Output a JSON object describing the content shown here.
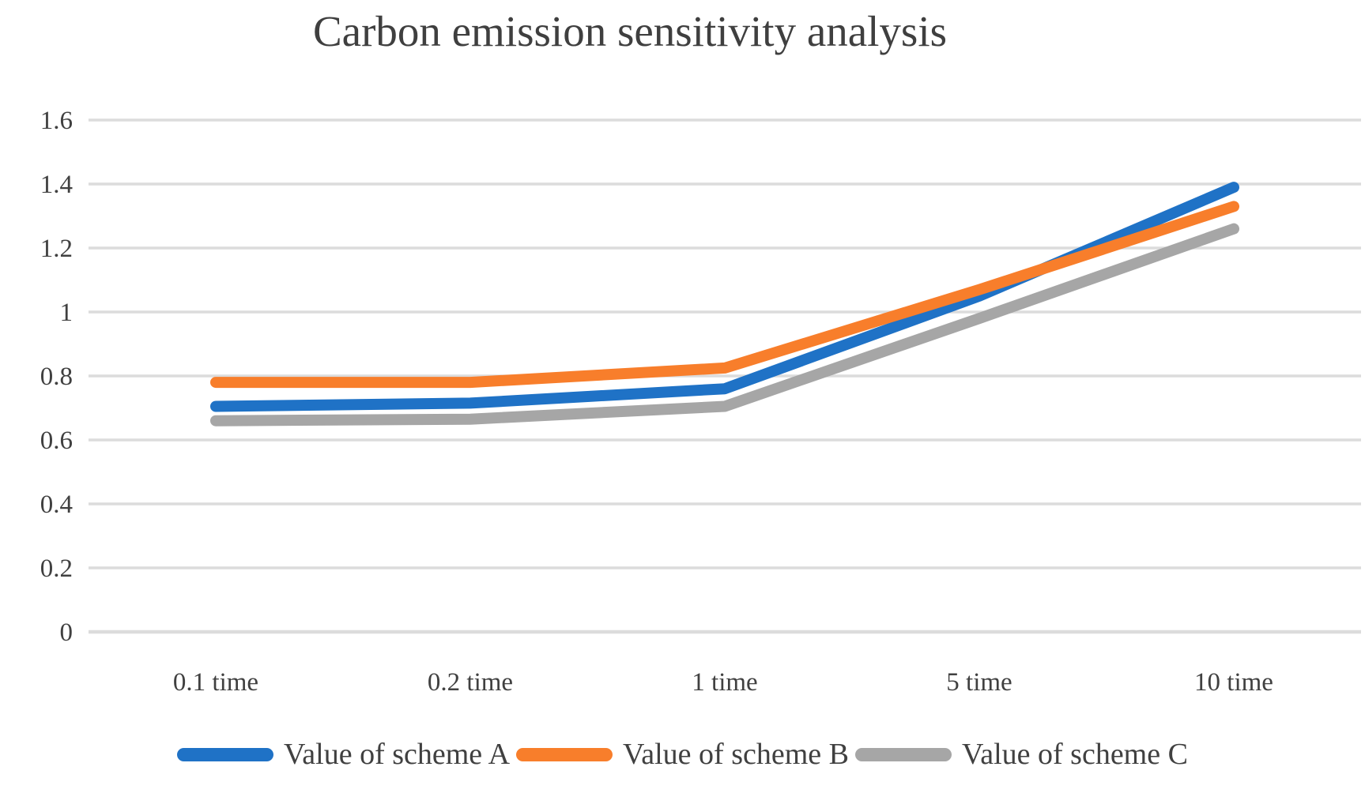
{
  "title": "Carbon emission sensitivity analysis",
  "chart_data": {
    "type": "line",
    "title": "Carbon emission sensitivity analysis",
    "categories": [
      "0.1 time",
      "0.2 time",
      "1 time",
      "5 time",
      "10 time"
    ],
    "series": [
      {
        "name": "Value of scheme A",
        "color": "#1F72C6",
        "values": [
          0.705,
          0.715,
          0.76,
          1.05,
          1.39
        ]
      },
      {
        "name": "Value of scheme B",
        "color": "#F87E2B",
        "values": [
          0.78,
          0.78,
          0.825,
          1.07,
          1.33
        ]
      },
      {
        "name": "Value of scheme C",
        "color": "#A6A6A6",
        "values": [
          0.66,
          0.665,
          0.705,
          0.98,
          1.26
        ]
      }
    ],
    "xlabel": "",
    "ylabel": "",
    "ylim": [
      0,
      1.6
    ],
    "ytick_step": 0.2,
    "ytick_labels": [
      "0",
      "0.2",
      "0.4",
      "0.6",
      "0.8",
      "1",
      "1.2",
      "1.4",
      "1.6"
    ],
    "grid": "horizontal",
    "gridline_color": "#DCDCDC",
    "axis_text_color": "#404040",
    "legend_position": "bottom"
  }
}
